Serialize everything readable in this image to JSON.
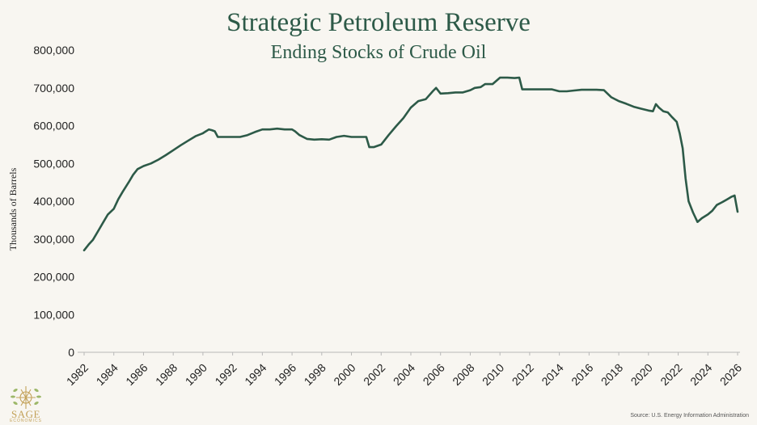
{
  "chart_data": {
    "type": "line",
    "title": "Strategic Petroleum Reserve",
    "subtitle": "Ending Stocks of Crude Oil",
    "ylabel": "Thousands of Barrels",
    "xlabel": "",
    "xlim": [
      1982,
      2026
    ],
    "ylim": [
      0,
      800000
    ],
    "grid": false,
    "legend": "none",
    "line_color": "#2d5a48",
    "y_ticks": [
      "0",
      "100,000",
      "200,000",
      "300,000",
      "400,000",
      "500,000",
      "600,000",
      "700,000",
      "800,000"
    ],
    "x_ticks": [
      "1982",
      "1984",
      "1986",
      "1988",
      "1990",
      "1992",
      "1994",
      "1996",
      "1998",
      "2000",
      "2002",
      "2004",
      "2006",
      "2008",
      "2010",
      "2012",
      "2014",
      "2016",
      "2018",
      "2020",
      "2022",
      "2024",
      "2026"
    ],
    "series": [
      {
        "x": [
          1982.0,
          1982.3,
          1982.6,
          1983.0,
          1983.3,
          1983.6,
          1984.0,
          1984.3,
          1984.6,
          1985.0,
          1985.3,
          1985.6,
          1986.0,
          1986.5,
          1987.0,
          1987.5,
          1988.0,
          1988.5,
          1989.0,
          1989.5,
          1990.0,
          1990.2,
          1990.4,
          1990.6,
          1990.8,
          1991.0,
          1991.5,
          1992.0,
          1992.5,
          1993.0,
          1993.5,
          1994.0,
          1994.5,
          1995.0,
          1995.5,
          1996.0,
          1996.2,
          1996.5,
          1997.0,
          1997.5,
          1998.0,
          1998.5,
          1999.0,
          1999.5,
          2000.0,
          2000.5,
          2001.0,
          2001.2,
          2001.5,
          2002.0,
          2002.5,
          2003.0,
          2003.5,
          2004.0,
          2004.5,
          2005.0,
          2005.5,
          2005.7,
          2006.0,
          2006.5,
          2007.0,
          2007.5,
          2008.0,
          2008.3,
          2008.7,
          2009.0,
          2009.5,
          2010.0,
          2010.5,
          2011.0,
          2011.3,
          2011.5,
          2012.0,
          2012.5,
          2013.0,
          2013.5,
          2014.0,
          2014.5,
          2015.0,
          2015.5,
          2016.0,
          2016.5,
          2017.0,
          2017.5,
          2018.0,
          2018.5,
          2019.0,
          2019.5,
          2020.0,
          2020.3,
          2020.5,
          2020.7,
          2021.0,
          2021.3,
          2021.6,
          2021.9,
          2022.1,
          2022.3,
          2022.5,
          2022.7,
          2023.0,
          2023.3,
          2023.6,
          2024.0,
          2024.3,
          2024.6,
          2025.0,
          2025.3,
          2025.6,
          2025.8,
          2026.0
        ],
        "y": [
          270000,
          285000,
          298000,
          325000,
          345000,
          365000,
          380000,
          405000,
          425000,
          450000,
          470000,
          485000,
          493000,
          500000,
          510000,
          522000,
          535000,
          548000,
          560000,
          572000,
          580000,
          585000,
          590000,
          588000,
          585000,
          570000,
          570000,
          570000,
          570000,
          575000,
          583000,
          590000,
          590000,
          592000,
          590000,
          590000,
          585000,
          575000,
          565000,
          563000,
          564000,
          563000,
          570000,
          573000,
          570000,
          570000,
          570000,
          543000,
          543000,
          550000,
          575000,
          598000,
          620000,
          648000,
          665000,
          670000,
          692000,
          700000,
          685000,
          686000,
          688000,
          688000,
          694000,
          700000,
          702000,
          710000,
          710000,
          727000,
          727000,
          726000,
          727000,
          696000,
          696000,
          696000,
          696000,
          696000,
          691000,
          691000,
          693000,
          695000,
          695000,
          695000,
          694000,
          675000,
          665000,
          658000,
          650000,
          645000,
          640000,
          638000,
          657000,
          648000,
          638000,
          635000,
          622000,
          610000,
          580000,
          540000,
          460000,
          400000,
          370000,
          345000,
          355000,
          365000,
          375000,
          390000,
          398000,
          405000,
          412000,
          415000,
          372000
        ]
      }
    ],
    "source": "Source: U.S. Energy Information Administration",
    "logo": {
      "name": "SAGE",
      "sub": "ECONOMICS"
    }
  }
}
